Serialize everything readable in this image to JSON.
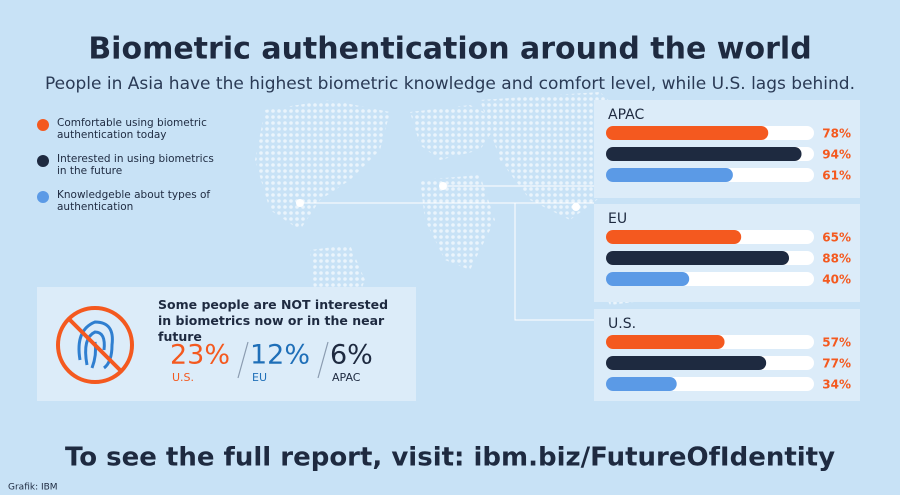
{
  "title": "Biometric authentication around the world",
  "subtitle": "People in Asia have the highest biometric knowledge and comfort level, while U.S. lags behind.",
  "legend": [
    {
      "label": "Comfortable using biometric authentication today",
      "color": "#f4591f"
    },
    {
      "label": "Interested in using biometrics in the future",
      "color": "#1e2a40"
    },
    {
      "label": "Knowledgeble  about types of authentication",
      "color": "#5b9ae6"
    }
  ],
  "chart_data": [
    {
      "type": "hbar",
      "title": "APAC",
      "values": [
        78,
        94,
        61
      ],
      "value_labels": [
        "78%",
        "94%",
        "61%"
      ],
      "xlim": [
        0,
        100
      ]
    },
    {
      "type": "hbar",
      "title": "EU",
      "values": [
        65,
        88,
        40
      ],
      "value_labels": [
        "65%",
        "88%",
        "40%"
      ],
      "xlim": [
        0,
        100
      ]
    },
    {
      "type": "hbar",
      "title": "U.S.",
      "values": [
        57,
        77,
        34
      ],
      "value_labels": [
        "57%",
        "77%",
        "34%"
      ],
      "xlim": [
        0,
        100
      ]
    }
  ],
  "callout": {
    "text": "Some people are NOT interested in biometrics now or in the near future",
    "stats": [
      {
        "value": "23%",
        "region": "U.S.",
        "color": "#f4591f"
      },
      {
        "value": "12%",
        "region": "EU",
        "color": "#1f6fb8"
      },
      {
        "value": "6%",
        "region": "APAC",
        "color": "#1e2a40"
      }
    ]
  },
  "footer": "To see the full report, visit: ibm.biz/FutureOfIdentity",
  "credit": "Grafik: IBM"
}
